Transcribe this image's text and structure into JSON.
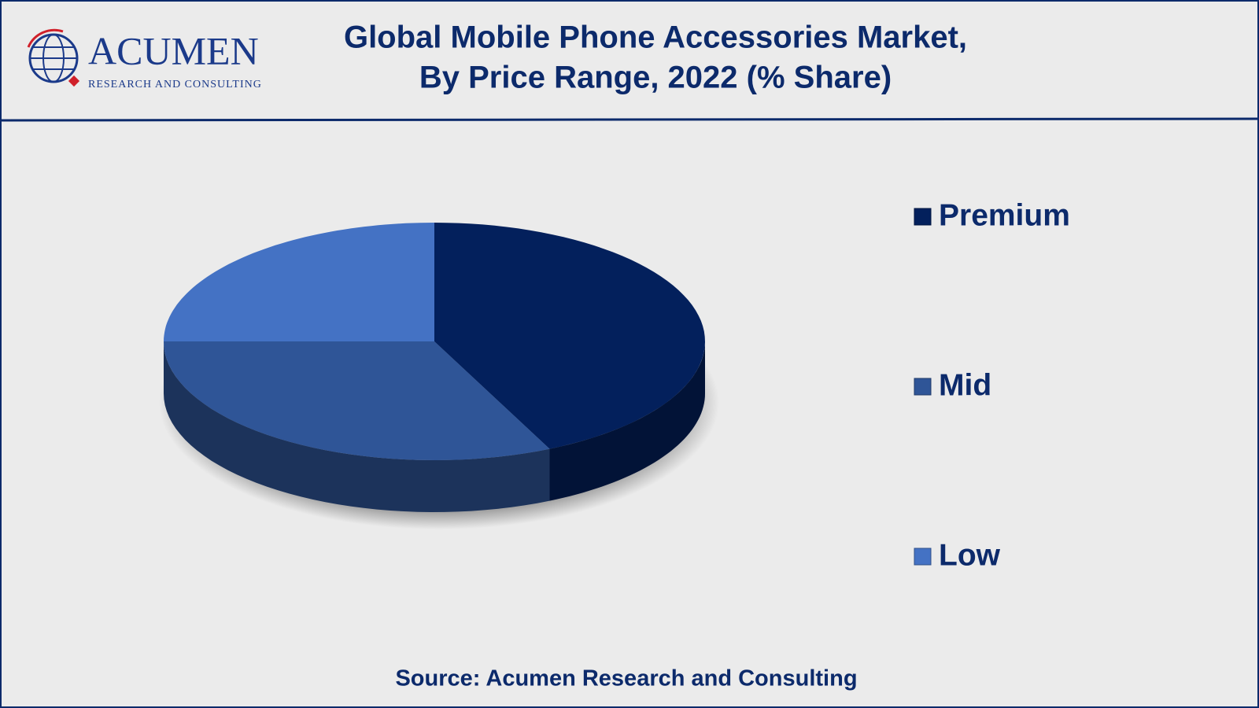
{
  "logo": {
    "name": "ACUMEN",
    "tagline": "RESEARCH AND CONSULTING"
  },
  "chart_data": {
    "type": "pie",
    "title": [
      "Global Mobile Phone Accessories Market,",
      "By Price Range, 2022 (% Share)"
    ],
    "categories": [
      "Premium",
      "Mid",
      "Low"
    ],
    "values": [
      43,
      32,
      25
    ],
    "colors": [
      "#03205c",
      "#2f5597",
      "#4472c4"
    ],
    "legend": "right",
    "source": "Source: Acumen Research and Consulting"
  }
}
